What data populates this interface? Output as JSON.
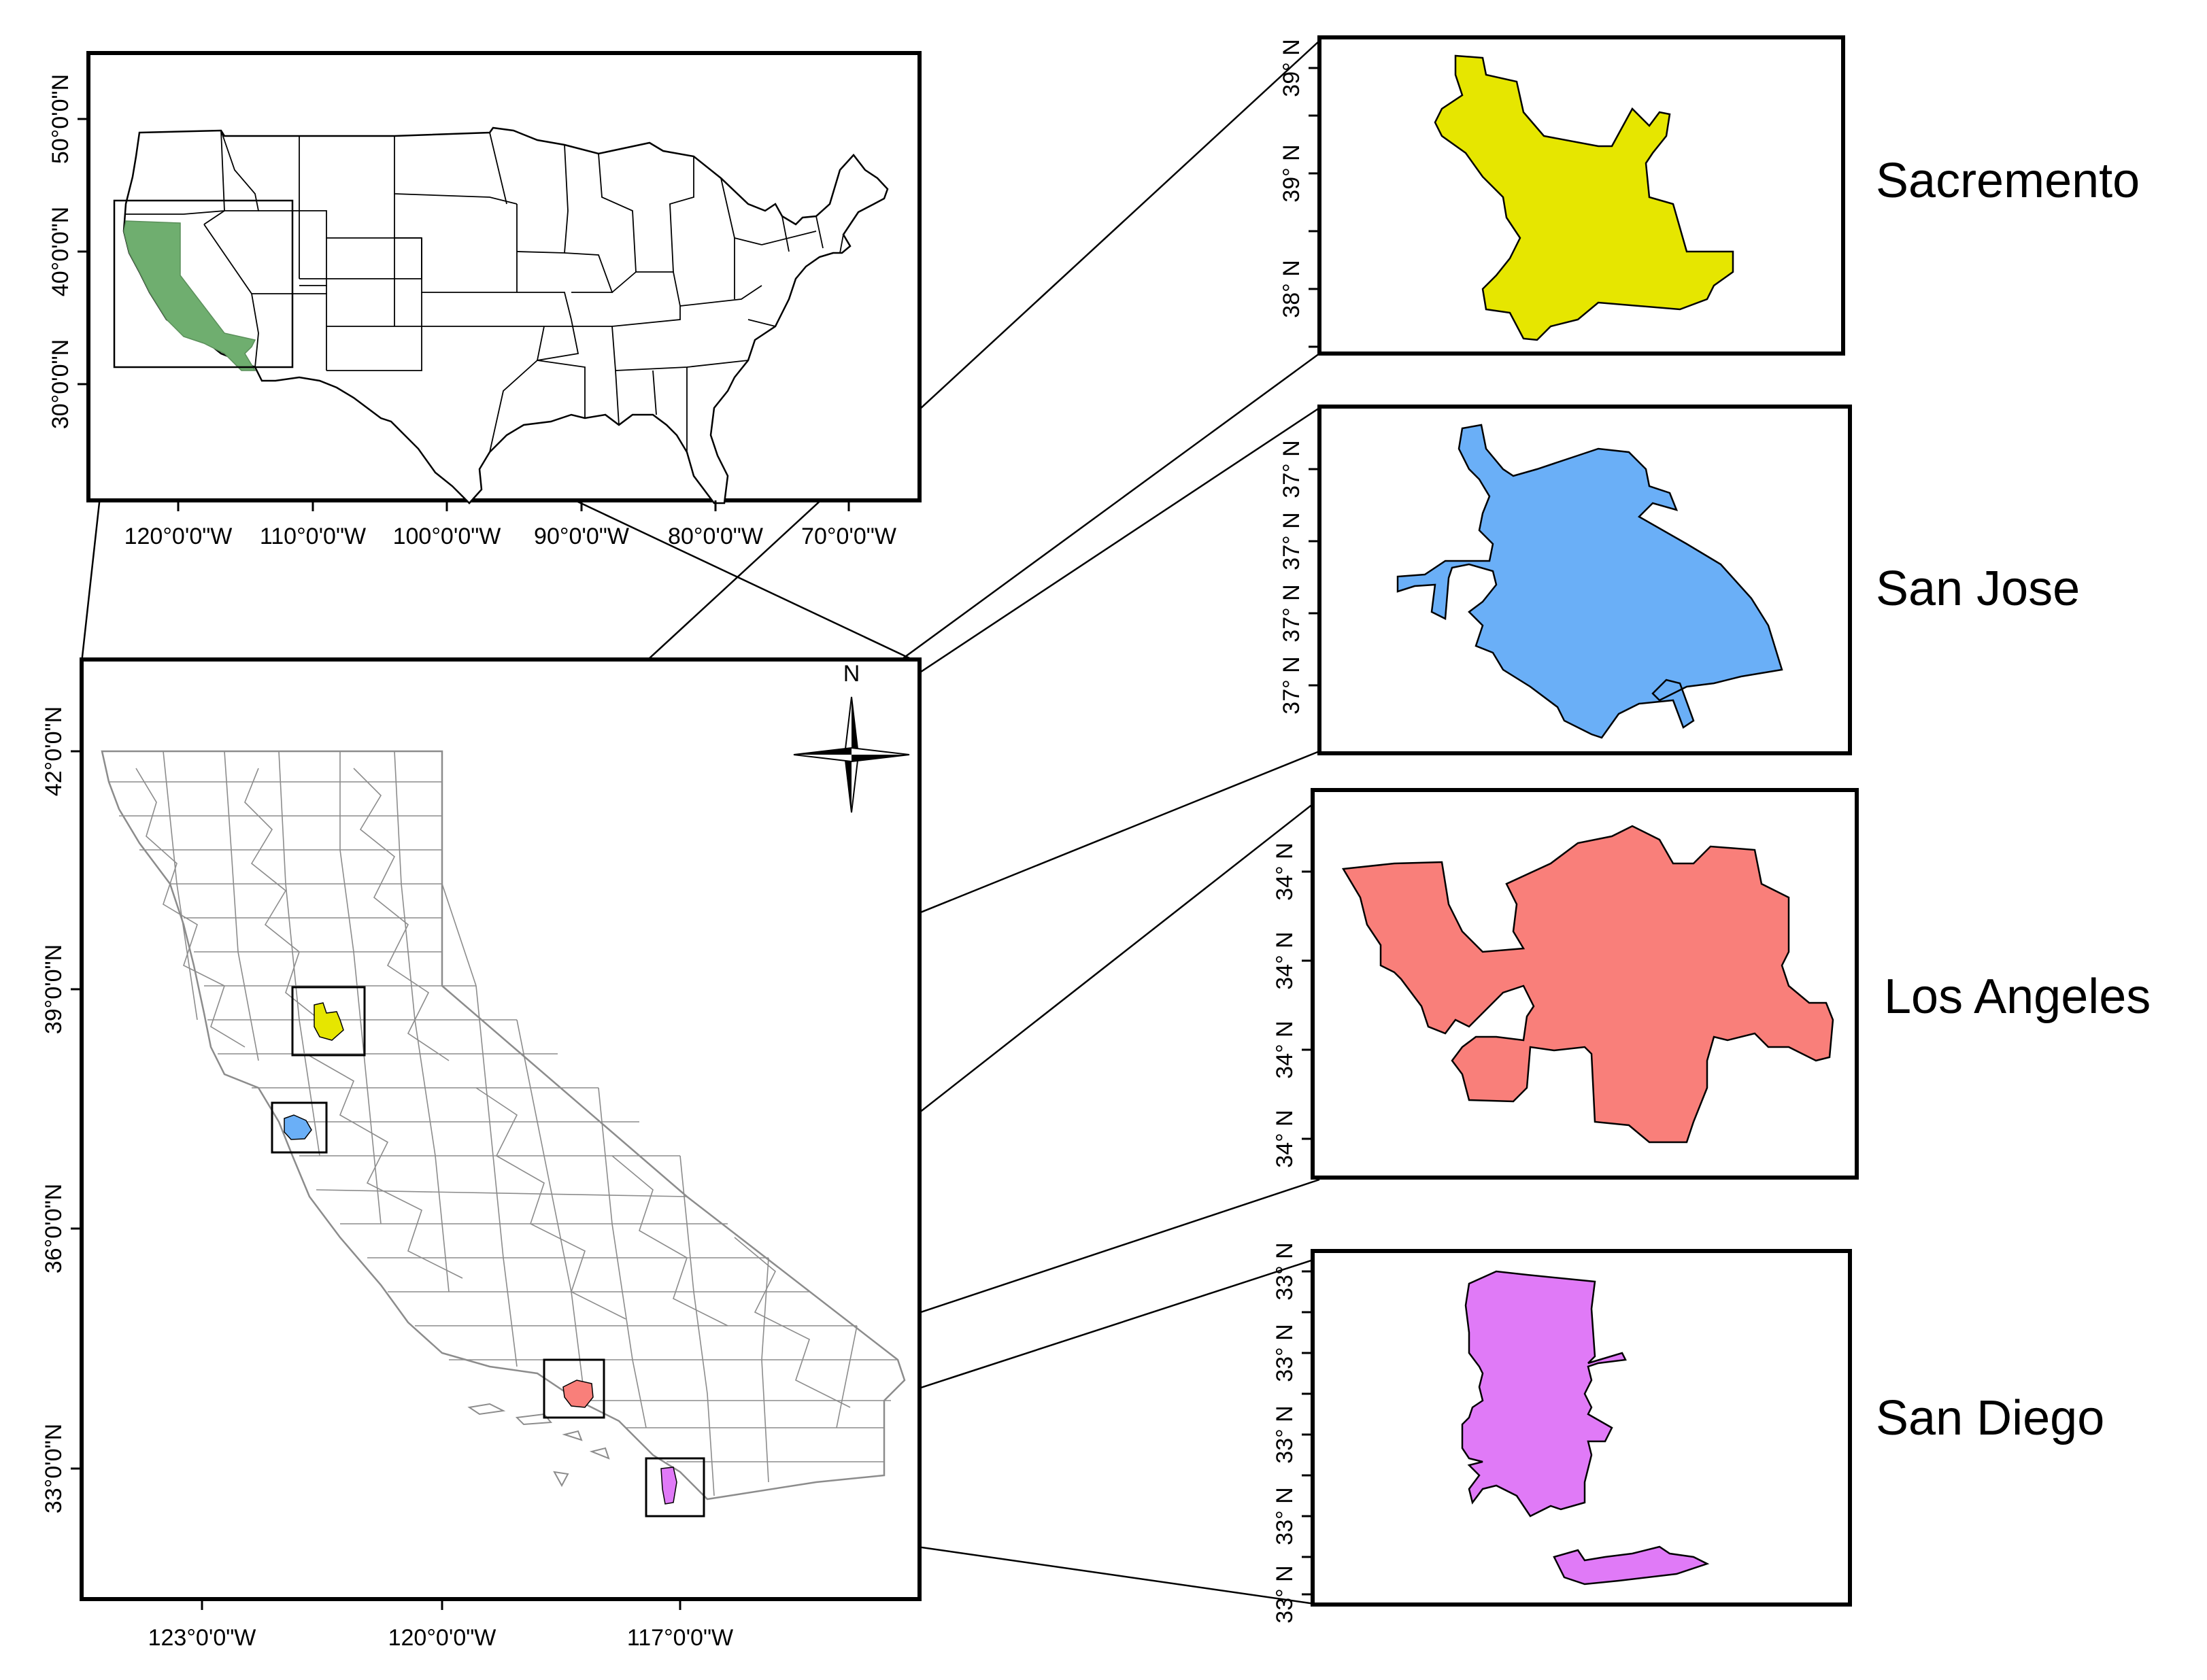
{
  "colors": {
    "california_fill": "#6fae6f",
    "sacramento_fill": "#e6e600",
    "sanjose_fill": "#6aaff7",
    "losangeles_fill": "#f97f7a",
    "sandiego_fill": "#e07af7",
    "county_line": "#8c8c8c"
  },
  "us_map": {
    "lon_labels": [
      "120°0'0\"W",
      "110°0'0\"W",
      "100°0'0\"W",
      "90°0'0\"W",
      "80°0'0\"W",
      "70°0'0\"W"
    ],
    "lat_labels": [
      "30°0'0\"N",
      "40°0'0\"N",
      "50°0'0\"N"
    ]
  },
  "ca_map": {
    "lon_labels": [
      "123°0'0\"W",
      "120°0'0\"W",
      "117°0'0\"W"
    ],
    "lat_labels": [
      "33°0'0\"N",
      "36°0'0\"N",
      "39°0'0\"N",
      "42°0'0\"N"
    ],
    "north_label": "N",
    "north_arrow_icon": "north-arrow-icon"
  },
  "insets": {
    "sacramento": {
      "name": "Sacremento",
      "lat_labels": [
        "38° N",
        "39° N",
        "39° N"
      ]
    },
    "sanjose": {
      "name": "San Jose",
      "lat_labels": [
        "37° N",
        "37° N",
        "37° N",
        "37° N"
      ]
    },
    "losangeles": {
      "name": "Los Angeles",
      "lat_labels": [
        "34° N",
        "34° N",
        "34° N",
        "34° N"
      ]
    },
    "sandiego": {
      "name": "San Diego",
      "lat_labels": [
        "33° N",
        "33° N",
        "33° N",
        "33° N",
        "33° N"
      ]
    }
  }
}
